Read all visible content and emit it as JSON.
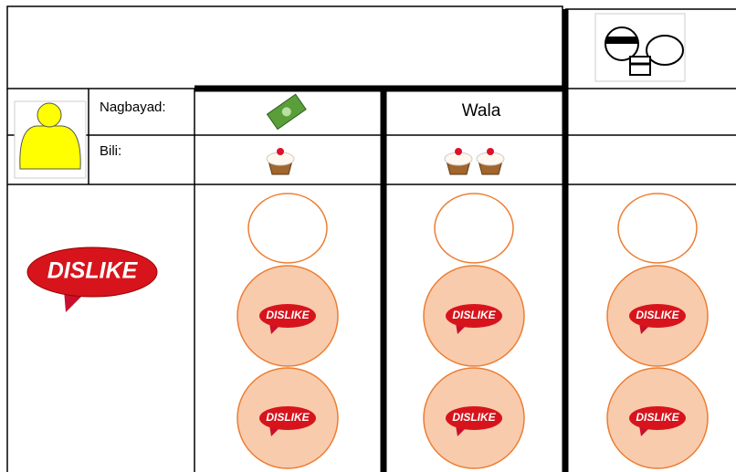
{
  "labels": {
    "paid": "Nagbayad:",
    "bought": "Bili:"
  },
  "main_badge": "DISLIKE",
  "columns": [
    {
      "badges": [
        "DISLIKE",
        "DISLIKE"
      ]
    },
    {
      "paid": "Wala",
      "badges": [
        "DISLIKE",
        "DISLIKE"
      ]
    },
    {
      "badges": [
        "DISLIKE",
        "DISLIKE"
      ]
    }
  ]
}
